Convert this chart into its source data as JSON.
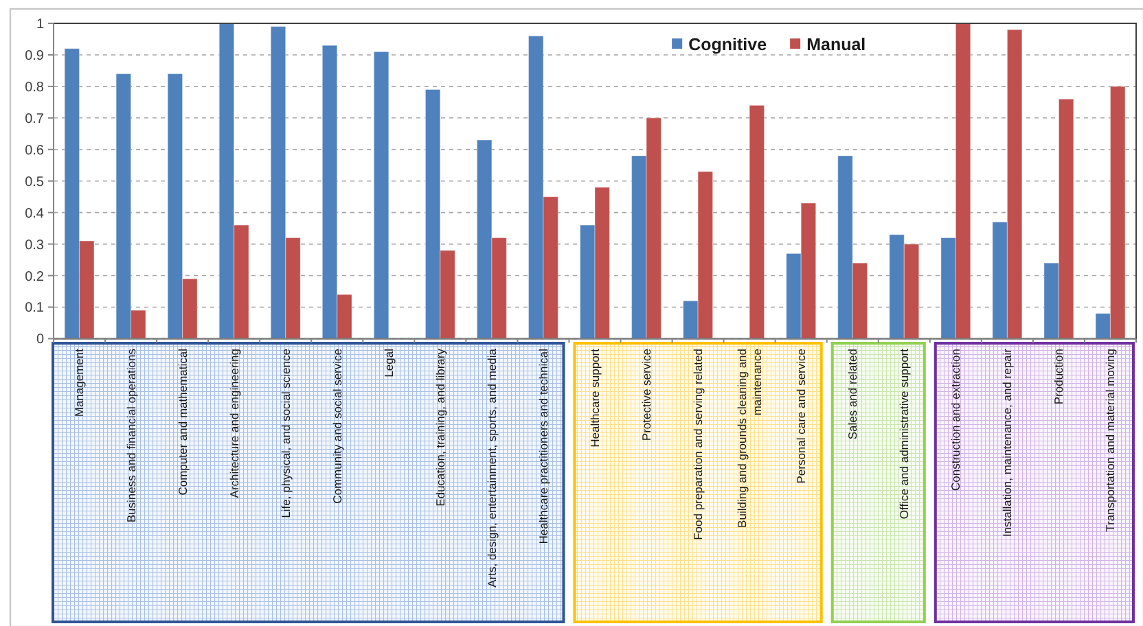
{
  "chart_data": {
    "type": "bar",
    "categories": [
      "Management",
      "Business and financial operations",
      "Computer and mathematical",
      "Architecture and engineering",
      "Life, physical, and social science",
      "Community and social service",
      "Legal",
      "Education, training, and library",
      "Arts, design, entertainment, sports, and media",
      "Healthcare practitioners and technical",
      "Healthcare support",
      "Protective service",
      "Food preparation and serving related",
      "Building and grounds cleaning and\nmaintenance",
      "Personal care and service",
      "Sales and related",
      "Office and administrative support",
      "Construction and extraction",
      "Installation, maintenance, and repair",
      "Production",
      "Transportation and material moving"
    ],
    "series": [
      {
        "name": "Cognitive",
        "color": "#4f81bd",
        "values": [
          0.92,
          0.84,
          0.84,
          1.0,
          0.99,
          0.93,
          0.91,
          0.79,
          0.63,
          0.96,
          0.36,
          0.58,
          0.12,
          null,
          0.27,
          0.58,
          0.33,
          0.32,
          0.37,
          0.24,
          0.08
        ]
      },
      {
        "name": "Manual",
        "color": "#c0504d",
        "values": [
          0.31,
          0.09,
          0.19,
          0.36,
          0.32,
          0.14,
          null,
          0.28,
          0.32,
          0.45,
          0.48,
          0.7,
          0.53,
          0.74,
          0.43,
          0.24,
          0.3,
          1.0,
          0.98,
          0.76,
          0.8
        ]
      }
    ],
    "ylim": [
      0,
      1
    ],
    "yticks": [
      0,
      0.1,
      0.2,
      0.3,
      0.4,
      0.5,
      0.6,
      0.7,
      0.8,
      0.9,
      1
    ],
    "grid": "y",
    "legend": "top"
  }
}
